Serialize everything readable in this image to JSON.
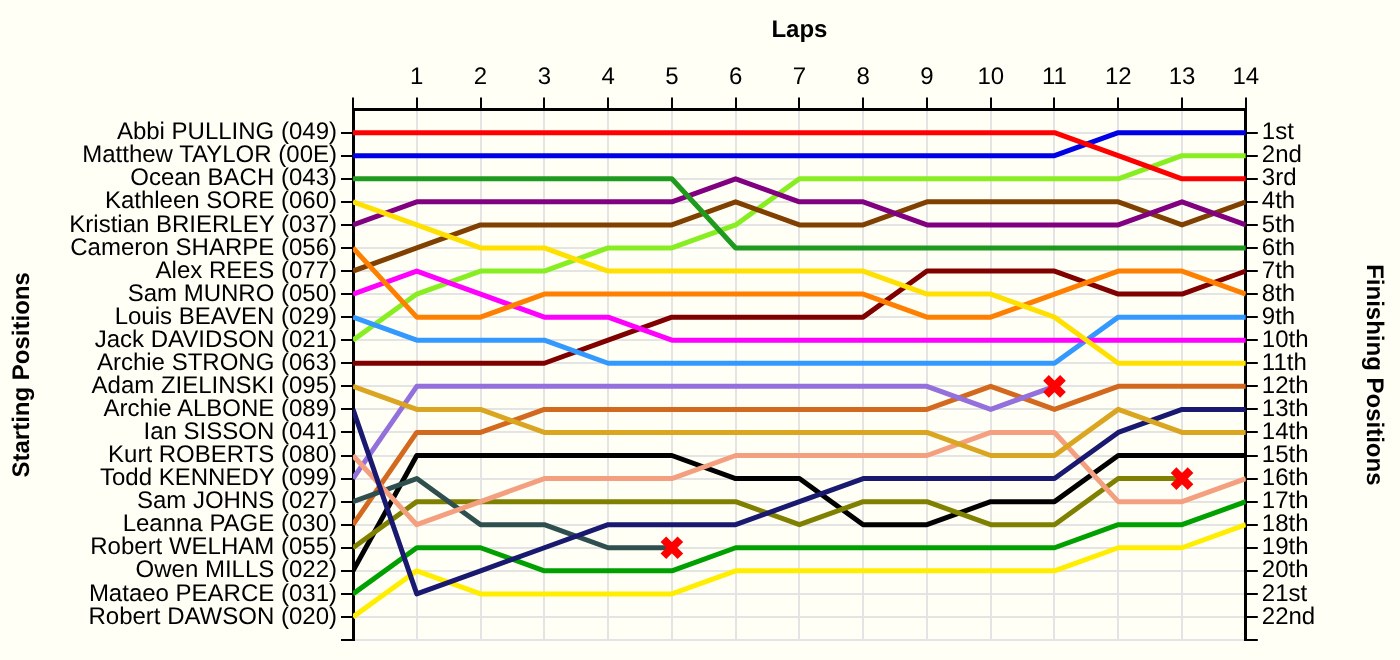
{
  "chart_data": {
    "type": "line",
    "xlabel": "Laps",
    "ylabel": "Finishing Positions",
    "grid": true,
    "marker": "none",
    "annotations": [
      "Starting Positions",
      "Abbi PULLING (049)",
      "Matthew TAYLOR (00E)",
      "Ocean BACH (043)",
      "Kathleen SORE (060)",
      "Kristian BRIERLEY (037)",
      "Cameron SHARPE (056)",
      "Alex REES (077)",
      "Sam MUNRO (050)",
      "Louis BEAVEN (029)",
      "Jack DAVIDSON (021)",
      "Archie STRONG (063)",
      "Adam ZIELINSKI (095)",
      "Archie ALBONE (089)",
      "Ian SISSON (041)",
      "Kurt ROBERTS (080)",
      "Todd KENNEDY (099)",
      "Sam JOHNS (027)",
      "Leanna PAGE (030)",
      "Robert WELHAM (055)",
      "Owen MILLS (022)",
      "Mataeo PEARCE (031)",
      "Robert DAWSON (020)"
    ],
    "x": [
      0,
      1,
      2,
      3,
      4,
      5,
      6,
      7,
      8,
      9,
      10,
      11,
      12,
      13,
      14
    ],
    "xlim": [
      0,
      14
    ],
    "xticks": [
      {
        "value": 0,
        "label": null
      },
      1,
      2,
      3,
      4,
      5,
      6,
      7,
      8,
      9,
      10,
      11,
      12,
      13,
      14
    ],
    "ylim": [
      23,
      0
    ],
    "yticks": [
      {
        "value": 1,
        "label": "1st"
      },
      {
        "value": 2,
        "label": "2nd"
      },
      {
        "value": 3,
        "label": "3rd"
      },
      {
        "value": 4,
        "label": "4th"
      },
      {
        "value": 5,
        "label": "5th"
      },
      {
        "value": 6,
        "label": "6th"
      },
      {
        "value": 7,
        "label": "7th"
      },
      {
        "value": 8,
        "label": "8th"
      },
      {
        "value": 9,
        "label": "9th"
      },
      {
        "value": 10,
        "label": "10th"
      },
      {
        "value": 11,
        "label": "11th"
      },
      {
        "value": 12,
        "label": "12th"
      },
      {
        "value": 13,
        "label": "13th"
      },
      {
        "value": 14,
        "label": "14th"
      },
      {
        "value": 15,
        "label": "15th"
      },
      {
        "value": 16,
        "label": "16th"
      },
      {
        "value": 17,
        "label": "17th"
      },
      {
        "value": 18,
        "label": "18th"
      },
      {
        "value": 19,
        "label": "19th"
      },
      {
        "value": 20,
        "label": "20th"
      },
      {
        "value": 21,
        "label": "21st"
      },
      {
        "value": 22,
        "label": "22nd"
      },
      {
        "value": 23,
        "label": null
      }
    ],
    "series": [
      {
        "color": "#ff0000",
        "values": [
          1,
          1,
          1,
          1,
          1,
          1,
          1,
          1,
          1,
          1,
          1,
          1,
          2,
          3,
          3
        ]
      },
      {
        "color": "#0000e6",
        "values": [
          2,
          2,
          2,
          2,
          2,
          2,
          2,
          2,
          2,
          2,
          2,
          2,
          1,
          1,
          1
        ]
      },
      {
        "color": "#1f9a1f",
        "values": [
          3,
          3,
          3,
          3,
          3,
          3,
          6,
          6,
          6,
          6,
          6,
          6,
          6,
          6,
          6
        ]
      },
      {
        "color": "#ffe000",
        "values": [
          4,
          5,
          6,
          6,
          7,
          7,
          7,
          7,
          7,
          8,
          8,
          9,
          11,
          11,
          11
        ]
      },
      {
        "color": "#800080",
        "values": [
          5,
          4,
          4,
          4,
          4,
          4,
          3,
          4,
          4,
          5,
          5,
          5,
          5,
          4,
          5
        ]
      },
      {
        "color": "#ff8000",
        "values": [
          6,
          9,
          9,
          8,
          8,
          8,
          8,
          8,
          8,
          9,
          9,
          8,
          7,
          7,
          8
        ]
      },
      {
        "color": "#804000",
        "values": [
          7,
          6,
          5,
          5,
          5,
          5,
          4,
          5,
          5,
          4,
          4,
          4,
          4,
          5,
          4
        ]
      },
      {
        "color": "#ff00ff",
        "values": [
          8,
          7,
          8,
          9,
          9,
          10,
          10,
          10,
          10,
          10,
          10,
          10,
          10,
          10,
          10
        ]
      },
      {
        "color": "#3399ff",
        "values": [
          9,
          10,
          10,
          10,
          11,
          11,
          11,
          11,
          11,
          11,
          11,
          11,
          9,
          9,
          9
        ]
      },
      {
        "color": "#88ee22",
        "values": [
          10,
          8,
          7,
          7,
          6,
          6,
          5,
          3,
          3,
          3,
          3,
          3,
          3,
          2,
          2
        ]
      },
      {
        "color": "#800000",
        "values": [
          11,
          11,
          11,
          11,
          10,
          9,
          9,
          9,
          9,
          7,
          7,
          7,
          8,
          8,
          7
        ]
      },
      {
        "color": "#daa520",
        "values": [
          12,
          13,
          13,
          14,
          14,
          14,
          14,
          14,
          14,
          14,
          15,
          15,
          13,
          14,
          14
        ]
      },
      {
        "color": "#191970",
        "values": [
          13,
          21,
          20,
          19,
          18,
          18,
          18,
          17,
          16,
          16,
          16,
          16,
          14,
          13,
          13
        ]
      },
      {
        "color": "#f4a080",
        "values": [
          15,
          18,
          17,
          16,
          16,
          16,
          15,
          15,
          15,
          15,
          14,
          14,
          17,
          17,
          16
        ]
      },
      {
        "color": "#9370db",
        "values": [
          16,
          12,
          12,
          12,
          12,
          12,
          12,
          12,
          12,
          12,
          13,
          12,
          null,
          null,
          null
        ]
      },
      {
        "color": "#2f4f4f",
        "values": [
          17,
          16,
          18,
          18,
          19,
          19,
          null,
          null,
          null,
          null,
          null,
          null,
          null,
          null,
          null
        ]
      },
      {
        "color": "#d2691e",
        "values": [
          18,
          14,
          14,
          13,
          13,
          13,
          13,
          13,
          13,
          13,
          12,
          13,
          12,
          12,
          12
        ]
      },
      {
        "color": "#808000",
        "values": [
          19,
          17,
          17,
          17,
          17,
          17,
          17,
          18,
          17,
          17,
          18,
          18,
          16,
          16,
          null
        ]
      },
      {
        "color": "#000000",
        "values": [
          20,
          15,
          15,
          15,
          15,
          15,
          16,
          16,
          18,
          18,
          17,
          17,
          15,
          15,
          15
        ]
      },
      {
        "color": "#00a000",
        "values": [
          21,
          19,
          19,
          20,
          20,
          20,
          19,
          19,
          19,
          19,
          19,
          19,
          18,
          18,
          17
        ]
      },
      {
        "color": "#ffee00",
        "values": [
          22,
          20,
          21,
          21,
          21,
          21,
          20,
          20,
          20,
          20,
          20,
          20,
          19,
          19,
          18
        ]
      },
      {
        "type": "scatter",
        "color": "#ff0000",
        "marker": "cross",
        "x": [
          5,
          11,
          13
        ],
        "values": [
          19,
          12,
          16
        ]
      }
    ]
  }
}
